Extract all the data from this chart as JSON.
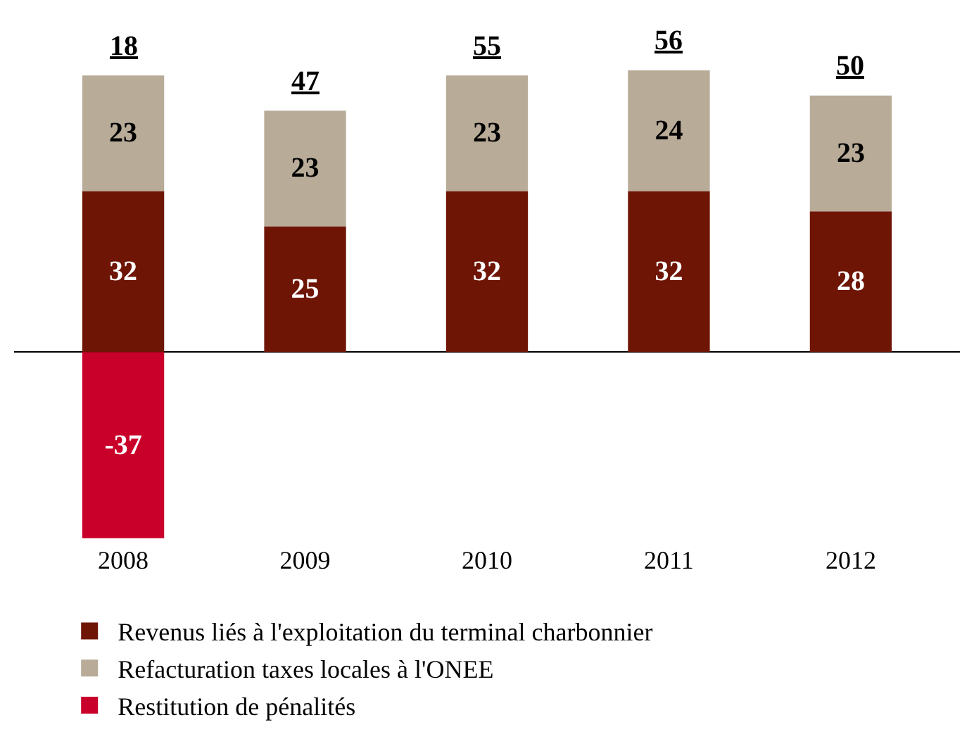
{
  "chart_data": {
    "type": "bar",
    "stacked": true,
    "categories": [
      "2008",
      "2009",
      "2010",
      "2011",
      "2012"
    ],
    "series": [
      {
        "name": "Revenus liés à l'exploitation du terminal charbonnier",
        "color": "#6e1505",
        "values": [
          32,
          25,
          32,
          32,
          28
        ]
      },
      {
        "name": "Refacturation taxes locales à l'ONEE",
        "color": "#b8ab98",
        "values": [
          23,
          23,
          23,
          24,
          23
        ]
      },
      {
        "name": "Restitution de pénalités",
        "color": "#c8002a",
        "values": [
          -37,
          null,
          null,
          null,
          null
        ]
      }
    ],
    "totals": [
      "18",
      "47",
      "55",
      "56",
      "50"
    ],
    "data_labels": true,
    "tick_labels": "x",
    "legend": "bottom"
  }
}
